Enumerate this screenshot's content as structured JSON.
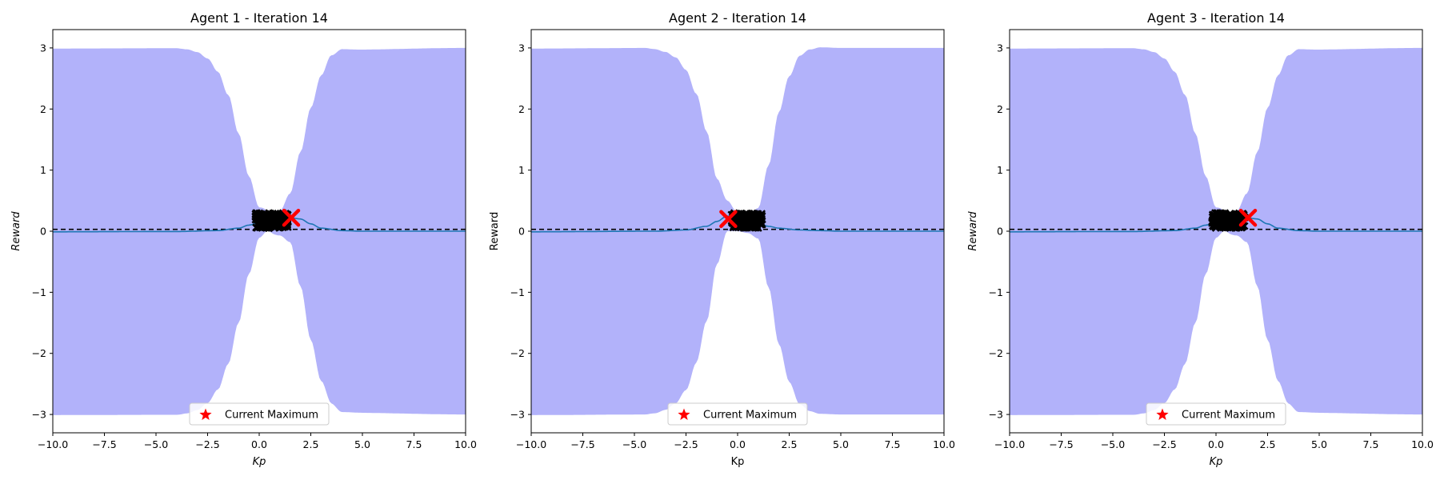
{
  "chart_data": [
    {
      "type": "line",
      "title": "Agent 1 - Iteration 14",
      "xlabel": "Kp",
      "xlabel_italic": true,
      "ylabel": "Reward",
      "ylabel_italic": true,
      "xlim": [
        -10,
        10
      ],
      "ylim": [
        -3.3,
        3.3
      ],
      "xticks": [
        -10,
        -7.5,
        -5,
        -2.5,
        0,
        2.5,
        5,
        7.5,
        10
      ],
      "xtick_labels": [
        "−10.0",
        "−7.5",
        "−5.0",
        "−2.5",
        "0.0",
        "2.5",
        "5.0",
        "7.5",
        "10.0"
      ],
      "yticks": [
        -3,
        -2,
        -1,
        0,
        1,
        2,
        3
      ],
      "ytick_labels": [
        "−3",
        "−2",
        "−1",
        "0",
        "1",
        "2",
        "3"
      ],
      "mean_curve": {
        "color": "#1f77b4",
        "x": [
          -10,
          -4,
          -2,
          -1,
          -0.5,
          0,
          0.3,
          0.7,
          1.0,
          1.5,
          2,
          2.5,
          3,
          4,
          5,
          10
        ],
        "y": [
          -0.01,
          -0.005,
          0.01,
          0.05,
          0.1,
          0.14,
          0.17,
          0.12,
          0.13,
          0.22,
          0.2,
          0.12,
          0.05,
          0.01,
          0,
          0
        ]
      },
      "confidence_band": {
        "color": "#b2b2fa",
        "x": [
          -10,
          -4,
          -3.5,
          -3,
          -2.5,
          -2,
          -1.5,
          -1,
          -0.5,
          0,
          0.5,
          1,
          1.5,
          2,
          2.5,
          3,
          3.5,
          4,
          10
        ],
        "half_width": [
          3,
          3,
          2.98,
          2.93,
          2.82,
          2.6,
          2.2,
          1.55,
          0.8,
          0.25,
          0.15,
          0.2,
          0.4,
          1.1,
          1.9,
          2.5,
          2.85,
          2.97,
          3
        ]
      },
      "baseline": {
        "y": 0.03,
        "style": "dashed",
        "color": "#000000"
      },
      "samples": {
        "x_range": [
          -0.2,
          1.4
        ],
        "y_range": [
          0.05,
          0.3
        ],
        "color": "#000000",
        "marker": "x"
      },
      "current_maximum": {
        "x": 1.55,
        "y": 0.22,
        "color": "#ff0000",
        "marker": "x"
      },
      "legend": {
        "label": "Current Maximum",
        "marker": "star",
        "color": "#ff0000",
        "placement": "lower center"
      }
    },
    {
      "type": "line",
      "title": "Agent 2 - Iteration 14",
      "xlabel": "Kp",
      "xlabel_italic": false,
      "ylabel": "Reward",
      "ylabel_italic": false,
      "xlim": [
        -10,
        10
      ],
      "ylim": [
        -3.3,
        3.3
      ],
      "xticks": [
        -10,
        -7.5,
        -5,
        -2.5,
        0,
        2.5,
        5,
        7.5,
        10
      ],
      "xtick_labels": [
        "−10.0",
        "−7.5",
        "−5.0",
        "−2.5",
        "0.0",
        "2.5",
        "5.0",
        "7.5",
        "10.0"
      ],
      "yticks": [
        -3,
        -2,
        -1,
        0,
        1,
        2,
        3
      ],
      "ytick_labels": [
        "−3",
        "−2",
        "−1",
        "0",
        "1",
        "2",
        "3"
      ],
      "mean_curve": {
        "color": "#1f77b4",
        "x": [
          -10,
          -4,
          -2.5,
          -1.5,
          -1,
          -0.5,
          0,
          0.5,
          1,
          1.5,
          2,
          3,
          4,
          5,
          10
        ],
        "y": [
          -0.01,
          0,
          0.02,
          0.08,
          0.16,
          0.25,
          0.15,
          0.12,
          0.13,
          0.08,
          0.05,
          0.02,
          0.01,
          0,
          0
        ]
      },
      "confidence_band": {
        "color": "#b2b2fa",
        "x": [
          -10,
          -4.5,
          -4,
          -3.5,
          -3,
          -2.5,
          -2,
          -1.5,
          -1,
          -0.5,
          0,
          0.5,
          1,
          1.5,
          2,
          2.5,
          3,
          3.5,
          4,
          10
        ],
        "half_width": [
          3,
          3,
          2.98,
          2.93,
          2.83,
          2.62,
          2.2,
          1.55,
          0.7,
          0.25,
          0.15,
          0.15,
          0.25,
          1.0,
          1.9,
          2.5,
          2.85,
          2.96,
          3,
          3
        ]
      },
      "baseline": {
        "y": 0.03,
        "style": "dashed",
        "color": "#000000"
      },
      "samples": {
        "x_range": [
          -0.3,
          1.2
        ],
        "y_range": [
          0.05,
          0.3
        ],
        "color": "#000000",
        "marker": "x"
      },
      "current_maximum": {
        "x": -0.45,
        "y": 0.2,
        "color": "#ff0000",
        "marker": "x"
      },
      "legend": {
        "label": "Current Maximum",
        "marker": "star",
        "color": "#ff0000",
        "placement": "lower center"
      }
    },
    {
      "type": "line",
      "title": "Agent 3 - Iteration 14",
      "xlabel": "Kp",
      "xlabel_italic": true,
      "ylabel": "Reward",
      "ylabel_italic": true,
      "xlim": [
        -10,
        10
      ],
      "ylim": [
        -3.3,
        3.3
      ],
      "xticks": [
        -10,
        -7.5,
        -5,
        -2.5,
        0,
        2.5,
        5,
        7.5,
        10
      ],
      "xtick_labels": [
        "−10.0",
        "−7.5",
        "−5.0",
        "−2.5",
        "0.0",
        "2.5",
        "5.0",
        "7.5",
        "10.0"
      ],
      "yticks": [
        -3,
        -2,
        -1,
        0,
        1,
        2,
        3
      ],
      "ytick_labels": [
        "−3",
        "−2",
        "−1",
        "0",
        "1",
        "2",
        "3"
      ],
      "mean_curve": {
        "color": "#1f77b4",
        "x": [
          -10,
          -4,
          -2,
          -1,
          -0.5,
          0,
          0.3,
          0.7,
          1.0,
          1.5,
          2,
          2.5,
          3,
          4,
          5,
          10
        ],
        "y": [
          -0.01,
          -0.005,
          0.01,
          0.05,
          0.1,
          0.14,
          0.17,
          0.12,
          0.13,
          0.22,
          0.2,
          0.12,
          0.05,
          0.01,
          0,
          0
        ]
      },
      "confidence_band": {
        "color": "#b2b2fa",
        "x": [
          -10,
          -4,
          -3.5,
          -3,
          -2.5,
          -2,
          -1.5,
          -1,
          -0.5,
          0,
          0.5,
          1,
          1.5,
          2,
          2.5,
          3,
          3.5,
          4,
          10
        ],
        "half_width": [
          3,
          3,
          2.98,
          2.93,
          2.82,
          2.6,
          2.2,
          1.55,
          0.8,
          0.25,
          0.15,
          0.2,
          0.4,
          1.1,
          1.9,
          2.5,
          2.85,
          2.97,
          3
        ]
      },
      "baseline": {
        "y": 0.03,
        "style": "dashed",
        "color": "#000000"
      },
      "samples": {
        "x_range": [
          -0.2,
          1.4
        ],
        "y_range": [
          0.05,
          0.3
        ],
        "color": "#000000",
        "marker": "x"
      },
      "current_maximum": {
        "x": 1.55,
        "y": 0.22,
        "color": "#ff0000",
        "marker": "x"
      },
      "legend": {
        "label": "Current Maximum",
        "marker": "star",
        "color": "#ff0000",
        "placement": "lower center"
      }
    }
  ]
}
